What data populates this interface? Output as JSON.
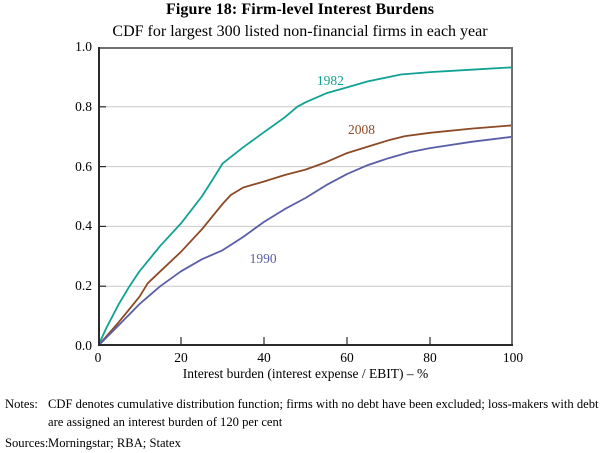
{
  "figure": {
    "title": "Figure 18: Firm-level Interest Burdens",
    "subtitle": "CDF for largest 300 listed non-financial firms in each year"
  },
  "notes": {
    "notes_label": "Notes:",
    "notes_text": "CDF denotes cumulative distribution function; firms with no debt have been excluded; loss-makers with debt are assigned an interest burden of 120 per cent",
    "sources_label": "Sources:",
    "sources_text": "Morningstar; RBA; Statex"
  },
  "chart_data": {
    "type": "line",
    "title": "Figure 18: Firm-level Interest Burdens",
    "subtitle": "CDF for largest 300 listed non-financial firms in each year",
    "xlabel": "Interest burden (interest expense / EBIT) – %",
    "ylabel": "",
    "xlim": [
      0,
      100
    ],
    "ylim": [
      0,
      1
    ],
    "x_ticks": [
      0,
      20,
      40,
      60,
      80,
      100
    ],
    "x_tick_labels": [
      "0",
      "20",
      "40",
      "60",
      "80",
      "100"
    ],
    "y_ticks": [
      0,
      0.2,
      0.4,
      0.6,
      0.8,
      1
    ],
    "y_tick_labels": [
      "0.0",
      "0.2",
      "0.4",
      "0.6",
      "0.8",
      "1.0"
    ],
    "grid": "horizontal-only",
    "legend": "inline-series-labels",
    "colors": {
      "grid": "#c9c9c9",
      "frame_light": "#6f6f6f",
      "frame_dark": "#2b2b2b",
      "text": "#000000"
    },
    "series": [
      {
        "name": "1982",
        "color": "#10A292",
        "label_pos": {
          "x": 56,
          "y": 0.885
        },
        "points": [
          [
            0,
            0
          ],
          [
            2,
            0.06
          ],
          [
            5,
            0.14
          ],
          [
            7.6,
            0.2
          ],
          [
            10,
            0.25
          ],
          [
            15,
            0.335
          ],
          [
            20,
            0.41
          ],
          [
            25,
            0.5
          ],
          [
            28,
            0.565
          ],
          [
            30,
            0.61
          ],
          [
            35,
            0.665
          ],
          [
            40,
            0.715
          ],
          [
            45,
            0.765
          ],
          [
            48,
            0.8
          ],
          [
            50,
            0.815
          ],
          [
            55,
            0.845
          ],
          [
            60,
            0.865
          ],
          [
            65,
            0.885
          ],
          [
            73,
            0.908
          ],
          [
            80,
            0.916
          ],
          [
            90,
            0.924
          ],
          [
            100,
            0.932
          ]
        ]
      },
      {
        "name": "2008",
        "color": "#8C4A26",
        "label_pos": {
          "x": 63.5,
          "y": 0.722
        },
        "points": [
          [
            0,
            0
          ],
          [
            5,
            0.08
          ],
          [
            10,
            0.165
          ],
          [
            12,
            0.21
          ],
          [
            15,
            0.25
          ],
          [
            20,
            0.315
          ],
          [
            25,
            0.39
          ],
          [
            30,
            0.475
          ],
          [
            32,
            0.505
          ],
          [
            35,
            0.53
          ],
          [
            40,
            0.55
          ],
          [
            45,
            0.572
          ],
          [
            50,
            0.59
          ],
          [
            55,
            0.615
          ],
          [
            60,
            0.645
          ],
          [
            65,
            0.667
          ],
          [
            70,
            0.688
          ],
          [
            74,
            0.702
          ],
          [
            80,
            0.713
          ],
          [
            90,
            0.727
          ],
          [
            100,
            0.738
          ]
        ]
      },
      {
        "name": "1990",
        "color": "#5A5EA8",
        "label_pos": {
          "x": 39.8,
          "y": 0.29
        },
        "points": [
          [
            0,
            0
          ],
          [
            5,
            0.07
          ],
          [
            10,
            0.14
          ],
          [
            15,
            0.2
          ],
          [
            20,
            0.25
          ],
          [
            25,
            0.29
          ],
          [
            30,
            0.32
          ],
          [
            35,
            0.365
          ],
          [
            40,
            0.415
          ],
          [
            45,
            0.458
          ],
          [
            50,
            0.495
          ],
          [
            55,
            0.538
          ],
          [
            60,
            0.575
          ],
          [
            65,
            0.605
          ],
          [
            70,
            0.628
          ],
          [
            75,
            0.648
          ],
          [
            80,
            0.662
          ],
          [
            90,
            0.683
          ],
          [
            100,
            0.7
          ]
        ]
      }
    ]
  }
}
